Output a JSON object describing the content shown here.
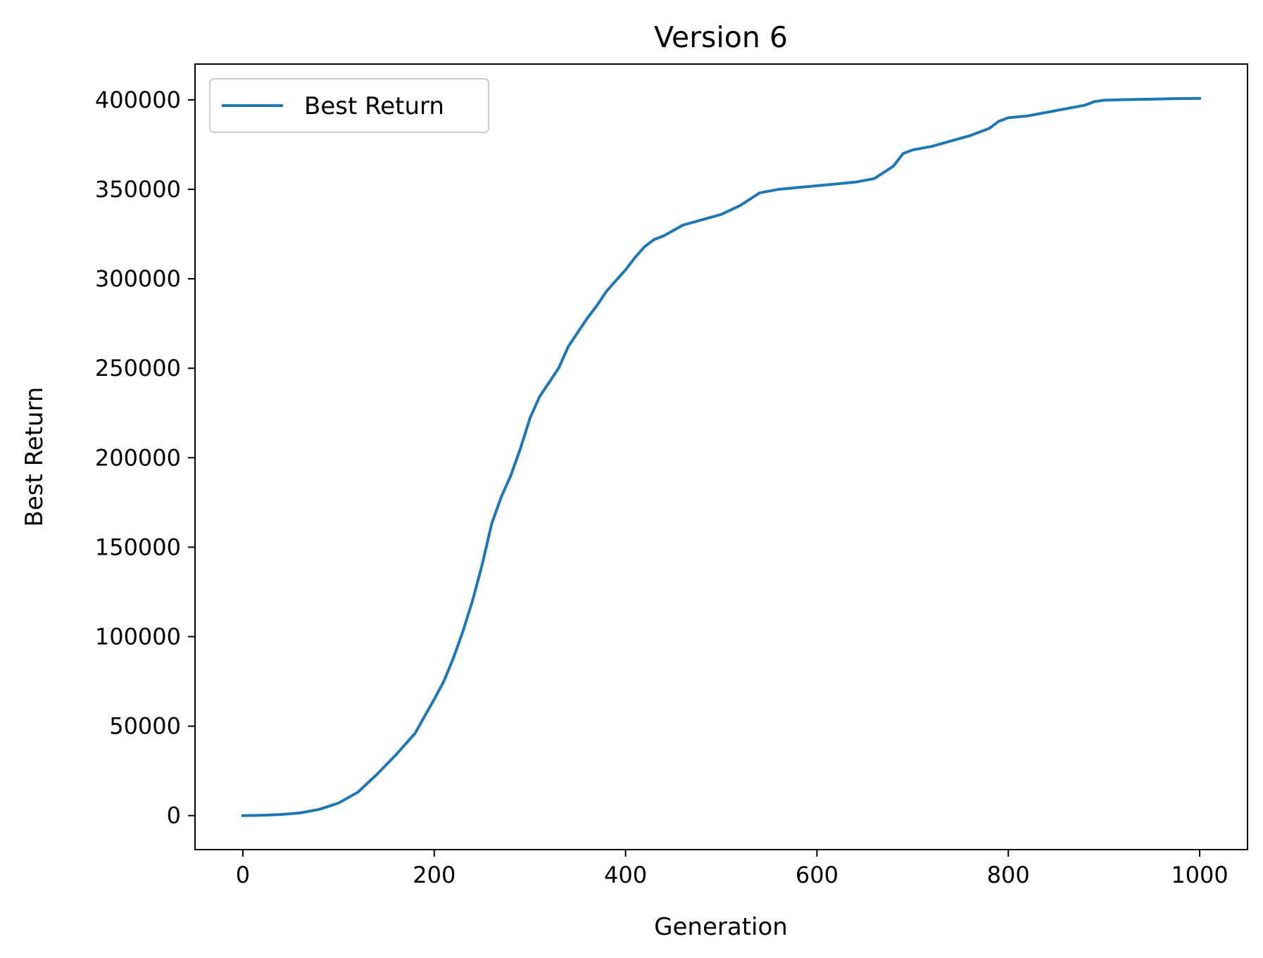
{
  "chart_data": {
    "type": "line",
    "title": "Version 6",
    "xlabel": "Generation",
    "ylabel": "Best Return",
    "xlim": [
      -50,
      1050
    ],
    "ylim": [
      -19000,
      420000
    ],
    "xticks": [
      0,
      200,
      400,
      600,
      800,
      1000
    ],
    "yticks": [
      0,
      50000,
      100000,
      150000,
      200000,
      250000,
      300000,
      350000,
      400000
    ],
    "grid": false,
    "legend_position": "top-left",
    "series": [
      {
        "name": "Best Return",
        "color": "#1f77b4",
        "x": [
          0,
          20,
          40,
          60,
          80,
          100,
          120,
          140,
          160,
          180,
          200,
          210,
          220,
          230,
          240,
          250,
          260,
          270,
          280,
          290,
          300,
          310,
          320,
          330,
          340,
          350,
          360,
          370,
          380,
          390,
          400,
          410,
          420,
          430,
          440,
          450,
          460,
          480,
          500,
          520,
          540,
          560,
          580,
          600,
          620,
          640,
          660,
          680,
          690,
          700,
          720,
          740,
          760,
          780,
          790,
          800,
          820,
          840,
          860,
          880,
          890,
          900,
          920,
          940,
          960,
          980,
          1000
        ],
        "y": [
          0,
          200,
          600,
          1500,
          3500,
          7000,
          13000,
          23000,
          34000,
          46000,
          65000,
          75000,
          88000,
          103000,
          120000,
          140000,
          163000,
          178000,
          190000,
          205000,
          222000,
          234000,
          242000,
          250000,
          262000,
          270000,
          278000,
          285000,
          293000,
          299000,
          305000,
          312000,
          318000,
          322000,
          324000,
          327000,
          330000,
          333000,
          336000,
          341000,
          348000,
          350000,
          351000,
          352000,
          353000,
          354000,
          356000,
          363000,
          370000,
          372000,
          374000,
          377000,
          380000,
          384000,
          388000,
          390000,
          391000,
          393000,
          395000,
          397000,
          399000,
          399800,
          400100,
          400300,
          400500,
          400700,
          400800
        ]
      }
    ]
  }
}
